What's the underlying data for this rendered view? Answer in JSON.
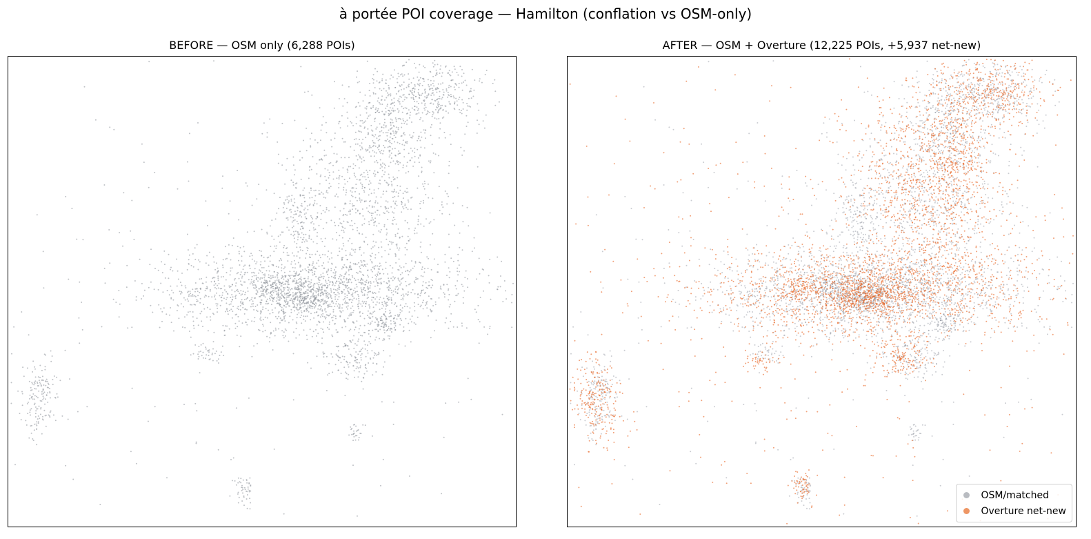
{
  "suptitle": "à portée POI coverage — Hamilton (conflation vs OSM-only)",
  "colors": {
    "osm": "#8a8f98",
    "overture": "#e8621f"
  },
  "chart_data": [
    {
      "type": "scatter",
      "title": "BEFORE — OSM only  (6,288 POIs)",
      "xlabel": "",
      "ylabel": "",
      "grid": false,
      "series": [
        {
          "points_total": 6288,
          "color": "#8a8f98",
          "clusters": [
            {
              "x": 0.6,
              "y": 0.5,
              "sx": 0.16,
              "sy": 0.045,
              "n": 1700
            },
            {
              "x": 0.59,
              "y": 0.51,
              "sx": 0.025,
              "sy": 0.02,
              "n": 220
            },
            {
              "x": 0.52,
              "y": 0.49,
              "sx": 0.015,
              "sy": 0.012,
              "n": 110
            },
            {
              "x": 0.74,
              "y": 0.57,
              "sx": 0.018,
              "sy": 0.015,
              "n": 90
            },
            {
              "x": 0.68,
              "y": 0.64,
              "sx": 0.03,
              "sy": 0.03,
              "n": 140
            },
            {
              "x": 0.71,
              "y": 0.28,
              "sx": 0.08,
              "sy": 0.1,
              "n": 800
            },
            {
              "x": 0.82,
              "y": 0.08,
              "sx": 0.06,
              "sy": 0.035,
              "n": 400
            },
            {
              "x": 0.75,
              "y": 0.16,
              "sx": 0.03,
              "sy": 0.04,
              "n": 160
            },
            {
              "x": 0.57,
              "y": 0.35,
              "sx": 0.025,
              "sy": 0.04,
              "n": 140
            },
            {
              "x": 0.06,
              "y": 0.73,
              "sx": 0.02,
              "sy": 0.045,
              "n": 160
            },
            {
              "x": 0.465,
              "y": 0.92,
              "sx": 0.01,
              "sy": 0.015,
              "n": 45
            },
            {
              "x": 0.685,
              "y": 0.8,
              "sx": 0.008,
              "sy": 0.01,
              "n": 25
            },
            {
              "x": 0.39,
              "y": 0.63,
              "sx": 0.015,
              "sy": 0.01,
              "n": 35
            },
            {
              "x": 0.5,
              "y": 0.5,
              "sx": 0.35,
              "sy": 0.35,
              "n": 250
            }
          ]
        }
      ]
    },
    {
      "type": "scatter",
      "title": "AFTER — OSM + Overture  (12,225 POIs, +5,937 net-new)",
      "xlabel": "",
      "ylabel": "",
      "grid": false,
      "legend": "bottom-right",
      "series": [
        {
          "name": "OSM/matched",
          "points_total": 6288,
          "color": "#8a8f98"
        },
        {
          "name": "Overture net-new",
          "points_total": 5937,
          "color": "#e8621f",
          "clusters": [
            {
              "x": 0.6,
              "y": 0.5,
              "sx": 0.17,
              "sy": 0.05,
              "n": 1500
            },
            {
              "x": 0.59,
              "y": 0.51,
              "sx": 0.03,
              "sy": 0.02,
              "n": 300
            },
            {
              "x": 0.46,
              "y": 0.49,
              "sx": 0.02,
              "sy": 0.012,
              "n": 90
            },
            {
              "x": 0.65,
              "y": 0.64,
              "sx": 0.025,
              "sy": 0.02,
              "n": 120
            },
            {
              "x": 0.71,
              "y": 0.28,
              "sx": 0.08,
              "sy": 0.1,
              "n": 900
            },
            {
              "x": 0.82,
              "y": 0.08,
              "sx": 0.06,
              "sy": 0.04,
              "n": 400
            },
            {
              "x": 0.76,
              "y": 0.22,
              "sx": 0.03,
              "sy": 0.05,
              "n": 200
            },
            {
              "x": 0.06,
              "y": 0.73,
              "sx": 0.025,
              "sy": 0.05,
              "n": 220
            },
            {
              "x": 0.465,
              "y": 0.91,
              "sx": 0.01,
              "sy": 0.02,
              "n": 60
            },
            {
              "x": 0.38,
              "y": 0.65,
              "sx": 0.015,
              "sy": 0.01,
              "n": 40
            },
            {
              "x": 0.5,
              "y": 0.5,
              "sx": 0.37,
              "sy": 0.36,
              "n": 550
            }
          ]
        }
      ]
    }
  ],
  "legend": {
    "osm_label": "OSM/matched",
    "overture_label": "Overture net-new"
  }
}
